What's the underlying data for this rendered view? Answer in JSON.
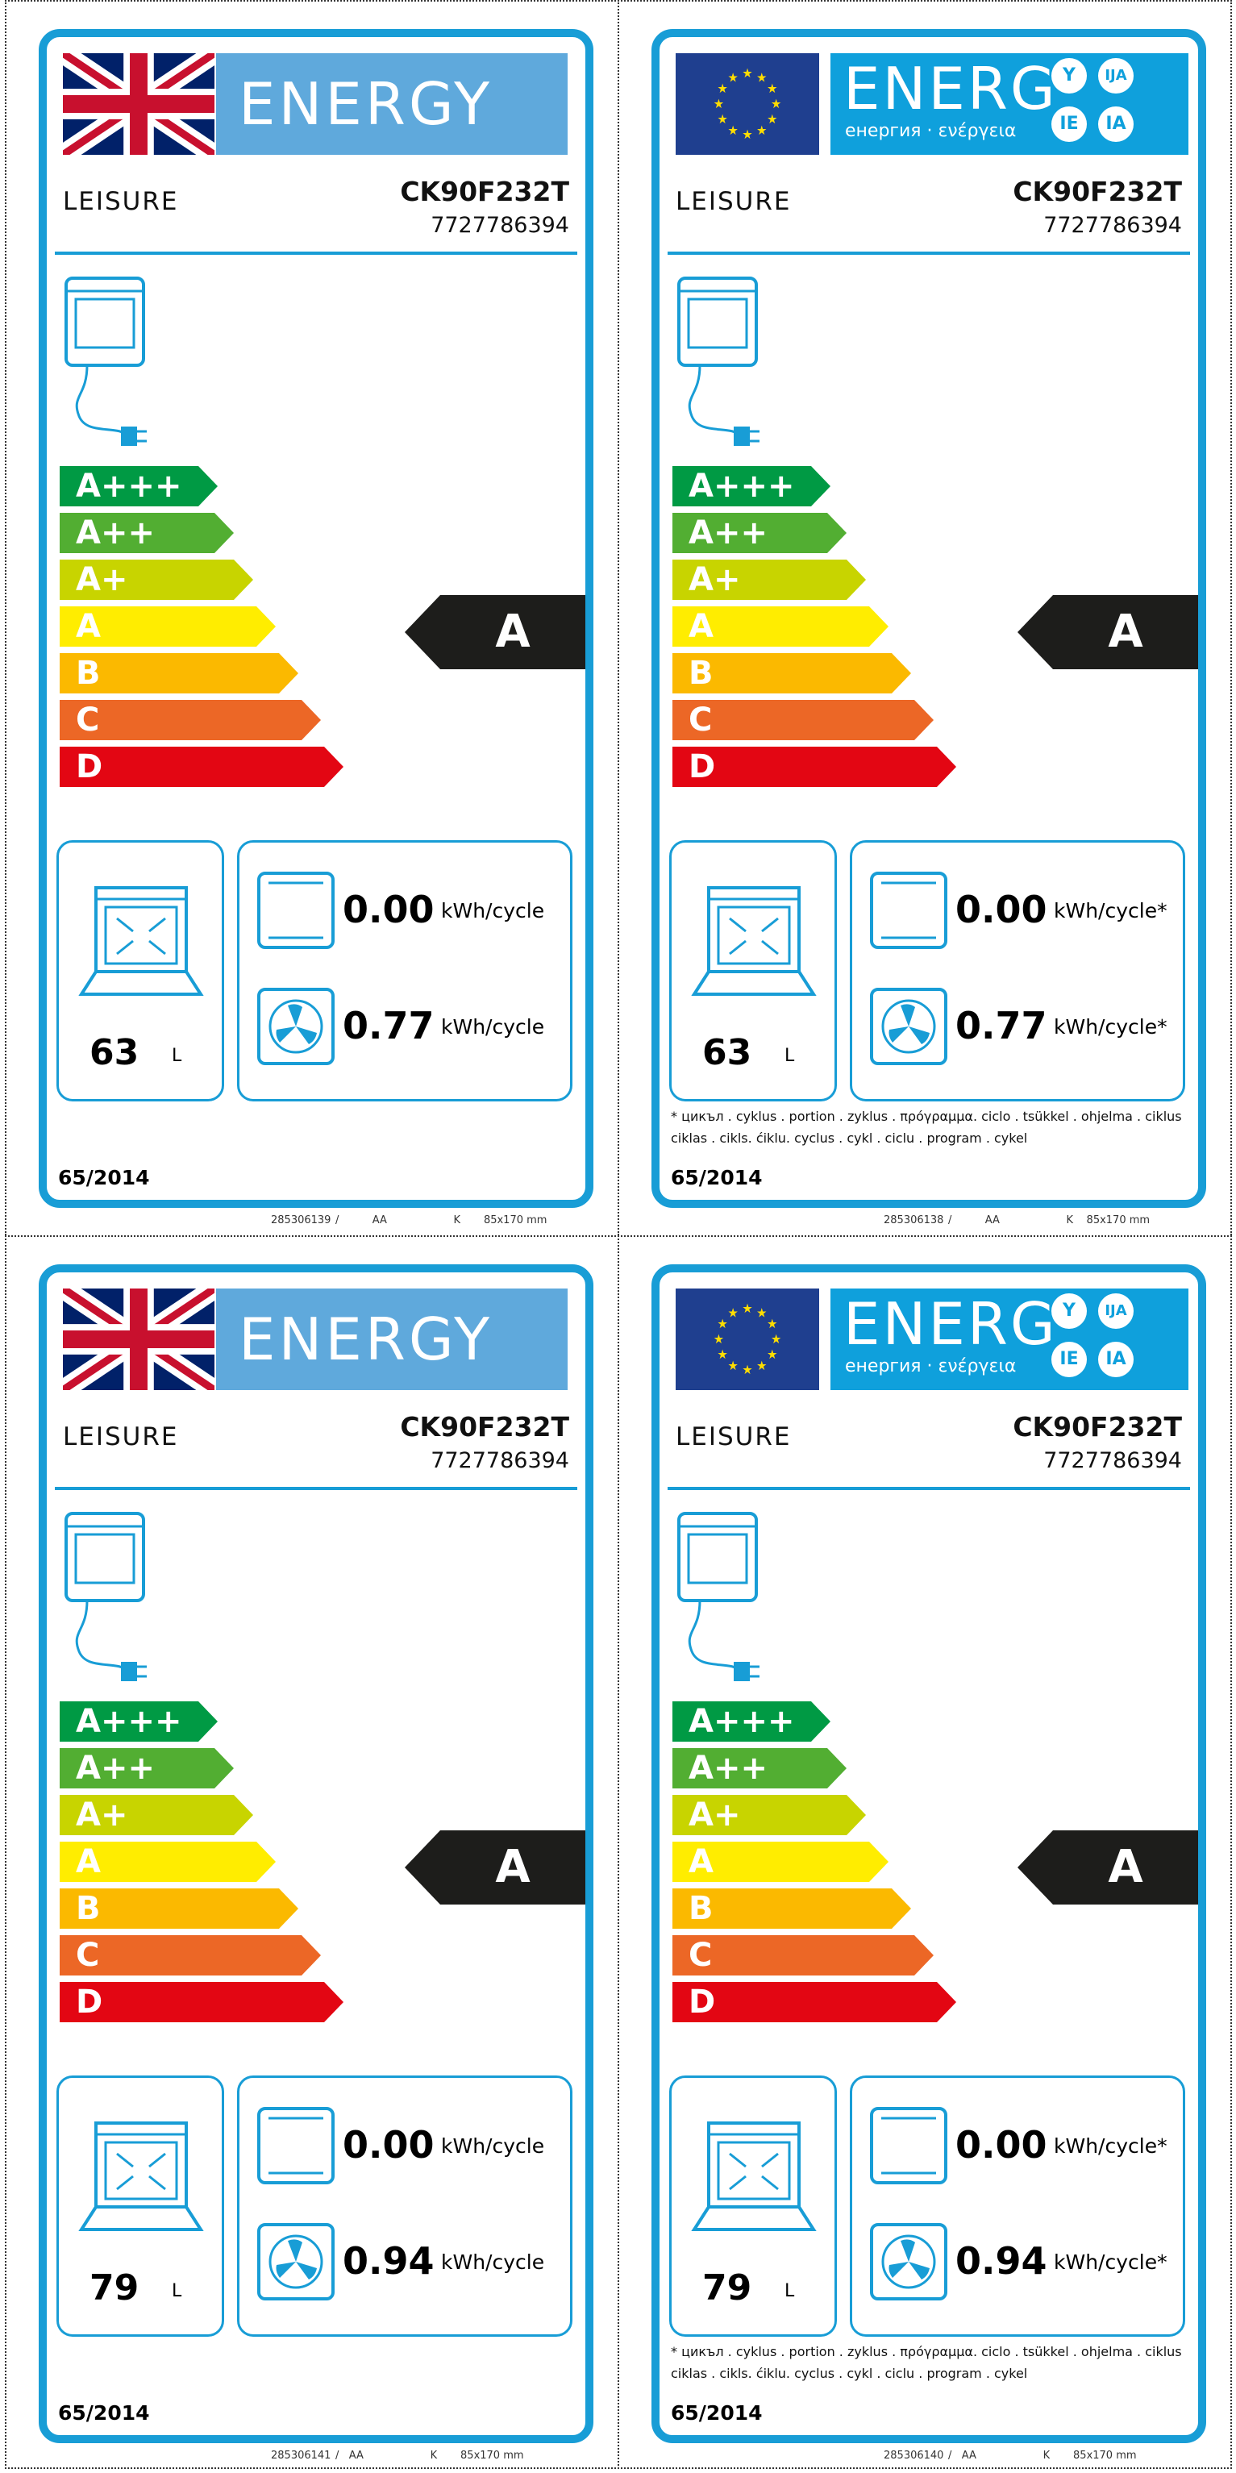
{
  "labels": [
    {
      "style": "uk",
      "banner": "ENERGY",
      "brand": "LEISURE",
      "model": "CK90F232T",
      "model_number": "7727786394",
      "scale": [
        "A+++",
        "A++",
        "A+",
        "A",
        "B",
        "C",
        "D"
      ],
      "rating": "A",
      "volume": "63",
      "volume_unit": "L",
      "conventional_energy": "0.00",
      "fan_energy": "0.77",
      "energy_unit": "kWh/cycle",
      "footnote": "",
      "regulation": "65/2014",
      "print_code": "285306139",
      "print_meta": "/          AA                    K       85x170 mm"
    },
    {
      "style": "eu",
      "banner": "ENERG",
      "banner_sub": "енергия · ενέργεια",
      "bubbles": [
        "Y",
        "IJA",
        "IE",
        "IA"
      ],
      "brand": "LEISURE",
      "model": "CK90F232T",
      "model_number": "7727786394",
      "scale": [
        "A+++",
        "A++",
        "A+",
        "A",
        "B",
        "C",
        "D"
      ],
      "rating": "A",
      "volume": "63",
      "volume_unit": "L",
      "conventional_energy": "0.00",
      "fan_energy": "0.77",
      "energy_unit": "kWh/cycle*",
      "footnote": "* цикъл . cyklus . portion . zyklus . πρόγραμμα. ciclo . tsükkel . ohjelma . ciklus ciklas . cikls. ćiklu. cyclus . cykl . ciclu . program . cykel",
      "regulation": "65/2014",
      "print_code": "285306138",
      "print_meta": "/          AA                    K    85x170 mm"
    },
    {
      "style": "uk",
      "banner": "ENERGY",
      "brand": "LEISURE",
      "model": "CK90F232T",
      "model_number": "7727786394",
      "scale": [
        "A+++",
        "A++",
        "A+",
        "A",
        "B",
        "C",
        "D"
      ],
      "rating": "A",
      "volume": "79",
      "volume_unit": "L",
      "conventional_energy": "0.00",
      "fan_energy": "0.94",
      "energy_unit": "kWh/cycle",
      "footnote": "",
      "regulation": "65/2014",
      "print_code": "285306141",
      "print_meta": "/   AA                    K       85x170 mm"
    },
    {
      "style": "eu",
      "banner": "ENERG",
      "banner_sub": "енергия · ενέργεια",
      "bubbles": [
        "Y",
        "IJA",
        "IE",
        "IA"
      ],
      "brand": "LEISURE",
      "model": "CK90F232T",
      "model_number": "7727786394",
      "scale": [
        "A+++",
        "A++",
        "A+",
        "A",
        "B",
        "C",
        "D"
      ],
      "rating": "A",
      "volume": "79",
      "volume_unit": "L",
      "conventional_energy": "0.00",
      "fan_energy": "0.94",
      "energy_unit": "kWh/cycle*",
      "footnote": "* цикъл . cyklus . portion . zyklus . πρόγραμμα. ciclo . tsükkel . ohjelma . ciklus ciklas . cikls. ćiklu. cyclus . cykl . ciclu . program . cykel",
      "regulation": "65/2014",
      "print_code": "285306140",
      "print_meta": "/   AA                    K       85x170 mm"
    }
  ],
  "colors": {
    "frame": "#189dd6",
    "scale": [
      "#009a44",
      "#52ae32",
      "#c8d400",
      "#ffed00",
      "#fbb900",
      "#ec6726",
      "#e30613"
    ],
    "rating_bg": "#1d1d1b",
    "uk_band": "#5fa9dc",
    "eu_band": "#0fa0dc",
    "eu_flag": "#1f3f8f",
    "eu_stars": "#ffdd00"
  },
  "icons": {
    "flag_uk": "union-jack-flag",
    "flag_eu": "eu-flag",
    "oven_plug": "oven-with-plug-icon",
    "oven_volume": "oven-cavity-icon",
    "conventional": "conventional-heating-icon",
    "fan": "fan-heating-icon"
  }
}
